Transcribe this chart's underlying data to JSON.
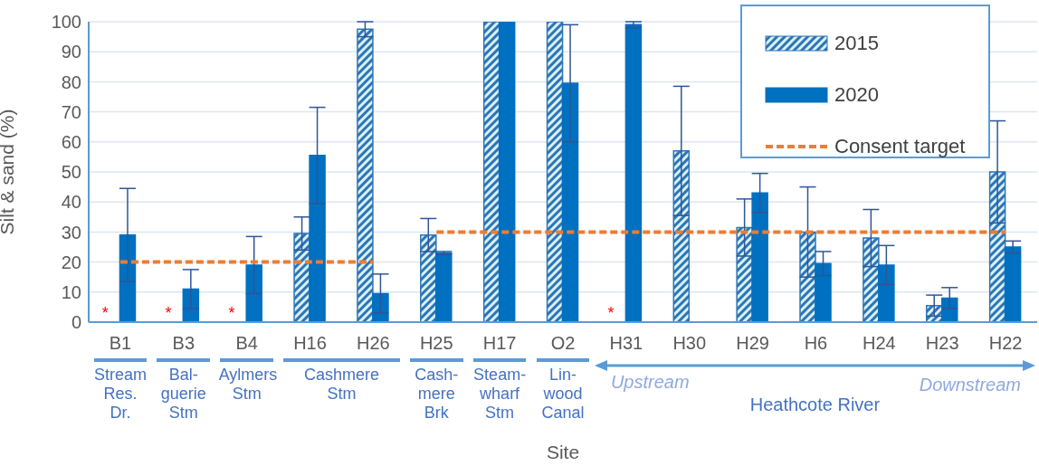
{
  "chart_data": {
    "type": "bar",
    "xlabel": "Site",
    "ylabel": "Silt & sand (%)",
    "categories": [
      "B1",
      "B3",
      "B4",
      "H16",
      "H26",
      "H25",
      "H17",
      "O2",
      "H31",
      "H30",
      "H29",
      "H6",
      "H24",
      "H23",
      "H22"
    ],
    "series": [
      {
        "name": "2015",
        "color": "#2e75b6",
        "values": [
          null,
          null,
          null,
          29.5,
          97.5,
          29,
          100,
          100,
          null,
          57,
          31.5,
          30,
          28,
          5.5,
          50
        ],
        "errors": [
          null,
          null,
          null,
          5.5,
          2.5,
          5.5,
          null,
          null,
          null,
          21.5,
          9.5,
          15,
          9.5,
          3.5,
          17
        ]
      },
      {
        "name": "2020",
        "color": "#0070c0",
        "values": [
          29,
          11,
          19,
          55.5,
          9.5,
          23,
          100,
          79.5,
          99,
          0,
          43,
          19.5,
          19,
          8,
          25
        ],
        "errors": [
          15.5,
          6.5,
          9.5,
          16,
          6.5,
          0.5,
          null,
          19.5,
          1,
          null,
          6.5,
          4,
          6.5,
          3.5,
          2
        ]
      },
      {
        "name": "Consent target",
        "type": "line",
        "color": "#ed7d31",
        "line_style": "dashed",
        "values": [
          20,
          20,
          20,
          20,
          20,
          null,
          null,
          null,
          null,
          null,
          null,
          null,
          null,
          null,
          null
        ]
      },
      {
        "type": "line",
        "color": "#ed7d31",
        "line_style": "dashed",
        "values": [
          null,
          null,
          null,
          null,
          null,
          30,
          30,
          30,
          30,
          30,
          30,
          30,
          30,
          30,
          30
        ]
      }
    ],
    "ylim": [
      0,
      100
    ],
    "yticks": [
      0,
      10,
      20,
      30,
      40,
      50,
      60,
      70,
      80,
      90,
      100
    ],
    "grid": "y",
    "legend": "top right",
    "marker": "none",
    "annotations": [
      "Stream Res. Dr.",
      "Bal-guerie Stm",
      "Aylmers Stm",
      "Cashmere Stm",
      "Cash-mere Brk",
      "Steam-wharf Stm",
      "Lin-wood Canal",
      "Upstream",
      "Downstream",
      "Heathcote River",
      {
        "text": "*",
        "x": "B1",
        "y": 0
      },
      {
        "text": "*",
        "x": "B3",
        "y": 0
      },
      {
        "text": "*",
        "x": "B4",
        "y": 0
      },
      {
        "text": "*",
        "x": "H31",
        "y": 0
      }
    ]
  }
}
